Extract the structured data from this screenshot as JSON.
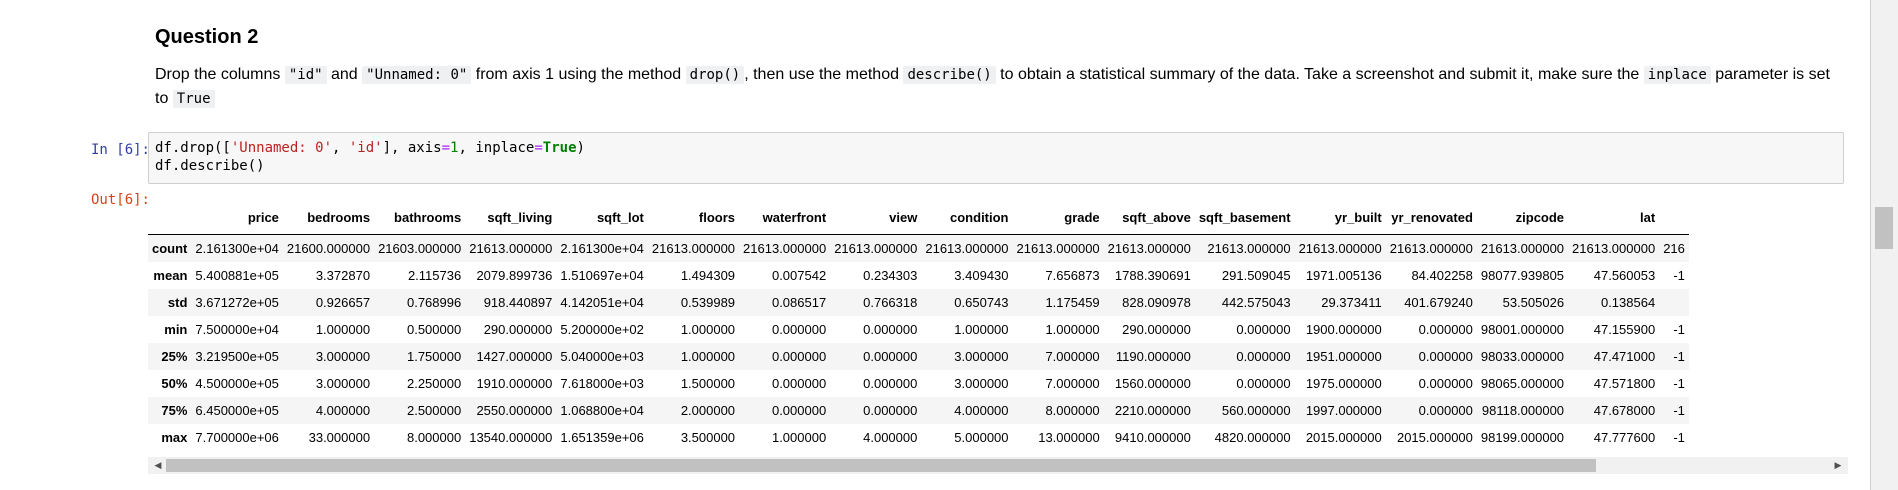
{
  "markdown": {
    "heading": "Question 2",
    "segments": [
      {
        "t": "text",
        "v": "Drop the columns "
      },
      {
        "t": "code",
        "v": "\"id\""
      },
      {
        "t": "text",
        "v": " and "
      },
      {
        "t": "code",
        "v": "\"Unnamed: 0\""
      },
      {
        "t": "text",
        "v": " from axis 1 using the method "
      },
      {
        "t": "code",
        "v": "drop()"
      },
      {
        "t": "text",
        "v": ", then use the method "
      },
      {
        "t": "code",
        "v": "describe()"
      },
      {
        "t": "text",
        "v": " to obtain a statistical summary of the data. Take a screenshot and submit it, make sure the "
      },
      {
        "t": "code",
        "v": "inplace"
      },
      {
        "t": "text",
        "v": " parameter is set to "
      },
      {
        "t": "code",
        "v": "True"
      }
    ]
  },
  "cell": {
    "in_prompt": "In [6]:",
    "out_prompt": "Out[6]:",
    "code": {
      "line1_a": "df.drop([",
      "line1_s1": "'Unnamed: 0'",
      "line1_b": ", ",
      "line1_s2": "'id'",
      "line1_c": "], axis",
      "line1_eq": "=",
      "line1_n": "1",
      "line1_d": ", inplace",
      "line1_eq2": "=",
      "line1_kw": "True",
      "line1_e": ")",
      "line2": "df.describe()"
    }
  },
  "table": {
    "columns": [
      "",
      "price",
      "bedrooms",
      "bathrooms",
      "sqft_living",
      "sqft_lot",
      "floors",
      "waterfront",
      "view",
      "condition",
      "grade",
      "sqft_above",
      "sqft_basement",
      "yr_built",
      "yr_renovated",
      "zipcode",
      "lat",
      ""
    ],
    "rows": [
      [
        "count",
        "2.161300e+04",
        "21600.000000",
        "21603.000000",
        "21613.000000",
        "2.161300e+04",
        "21613.000000",
        "21613.000000",
        "21613.000000",
        "21613.000000",
        "21613.000000",
        "21613.000000",
        "21613.000000",
        "21613.000000",
        "21613.000000",
        "21613.000000",
        "21613.000000",
        "216"
      ],
      [
        "mean",
        "5.400881e+05",
        "3.372870",
        "2.115736",
        "2079.899736",
        "1.510697e+04",
        "1.494309",
        "0.007542",
        "0.234303",
        "3.409430",
        "7.656873",
        "1788.390691",
        "291.509045",
        "1971.005136",
        "84.402258",
        "98077.939805",
        "47.560053",
        "-1"
      ],
      [
        "std",
        "3.671272e+05",
        "0.926657",
        "0.768996",
        "918.440897",
        "4.142051e+04",
        "0.539989",
        "0.086517",
        "0.766318",
        "0.650743",
        "1.175459",
        "828.090978",
        "442.575043",
        "29.373411",
        "401.679240",
        "53.505026",
        "0.138564",
        ""
      ],
      [
        "min",
        "7.500000e+04",
        "1.000000",
        "0.500000",
        "290.000000",
        "5.200000e+02",
        "1.000000",
        "0.000000",
        "0.000000",
        "1.000000",
        "1.000000",
        "290.000000",
        "0.000000",
        "1900.000000",
        "0.000000",
        "98001.000000",
        "47.155900",
        "-1"
      ],
      [
        "25%",
        "3.219500e+05",
        "3.000000",
        "1.750000",
        "1427.000000",
        "5.040000e+03",
        "1.000000",
        "0.000000",
        "0.000000",
        "3.000000",
        "7.000000",
        "1190.000000",
        "0.000000",
        "1951.000000",
        "0.000000",
        "98033.000000",
        "47.471000",
        "-1"
      ],
      [
        "50%",
        "4.500000e+05",
        "3.000000",
        "2.250000",
        "1910.000000",
        "7.618000e+03",
        "1.500000",
        "0.000000",
        "0.000000",
        "3.000000",
        "7.000000",
        "1560.000000",
        "0.000000",
        "1975.000000",
        "0.000000",
        "98065.000000",
        "47.571800",
        "-1"
      ],
      [
        "75%",
        "6.450000e+05",
        "4.000000",
        "2.500000",
        "2550.000000",
        "1.068800e+04",
        "2.000000",
        "0.000000",
        "0.000000",
        "4.000000",
        "8.000000",
        "2210.000000",
        "560.000000",
        "1997.000000",
        "0.000000",
        "98118.000000",
        "47.678000",
        "-1"
      ],
      [
        "max",
        "7.700000e+06",
        "33.000000",
        "8.000000",
        "13540.000000",
        "1.651359e+06",
        "3.500000",
        "1.000000",
        "4.000000",
        "5.000000",
        "13.000000",
        "9410.000000",
        "4820.000000",
        "2015.000000",
        "2015.000000",
        "98199.000000",
        "47.777600",
        "-1"
      ]
    ]
  },
  "scrollbar": {
    "left_arrow": "◀",
    "right_arrow": "▶"
  }
}
